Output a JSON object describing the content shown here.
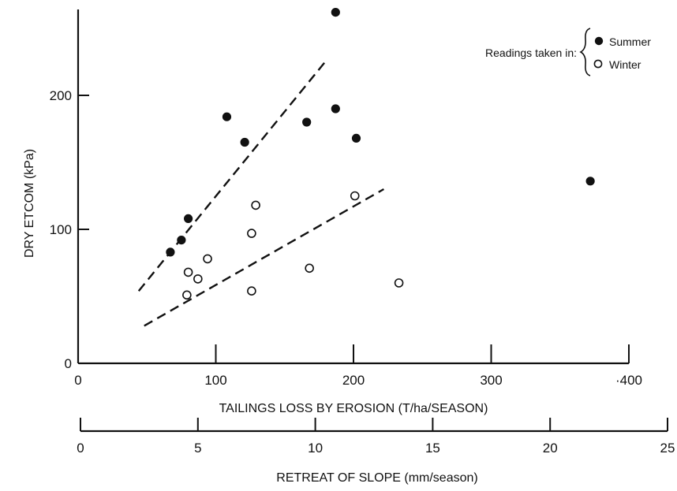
{
  "chart_data": {
    "type": "scatter",
    "title": "",
    "xlabel": "TAILINGS LOSS BY EROSION (T/ha/SEASON)",
    "ylabel": "DRY ETCOM (kPa)",
    "x2label": "RETREAT OF SLOPE (mm/season)",
    "xlim": [
      0,
      400
    ],
    "ylim": [
      0,
      260
    ],
    "x2lim": [
      0,
      25
    ],
    "xticks": [
      0,
      100,
      200,
      300,
      400
    ],
    "xtick_labels": [
      "0",
      "100",
      "200",
      "300",
      "·400"
    ],
    "yticks": [
      0,
      100,
      200
    ],
    "ytick_labels": [
      "0",
      "100",
      "200"
    ],
    "x2ticks": [
      0,
      5,
      10,
      15,
      20,
      25
    ],
    "x2tick_labels": [
      "0",
      "5",
      "10",
      "15",
      "20",
      "25"
    ],
    "grid": false,
    "legend": {
      "title": "Readings taken in:",
      "placement": "top-right",
      "entries": [
        "Summer",
        "Winter"
      ]
    },
    "series": [
      {
        "name": "Summer",
        "marker": "filled-circle",
        "points": [
          {
            "x": 67,
            "y": 83
          },
          {
            "x": 75,
            "y": 92
          },
          {
            "x": 80,
            "y": 108
          },
          {
            "x": 108,
            "y": 184
          },
          {
            "x": 121,
            "y": 165
          },
          {
            "x": 166,
            "y": 180
          },
          {
            "x": 187,
            "y": 262
          },
          {
            "x": 187,
            "y": 190
          },
          {
            "x": 202,
            "y": 168
          },
          {
            "x": 372,
            "y": 136
          }
        ]
      },
      {
        "name": "Winter",
        "marker": "open-circle",
        "points": [
          {
            "x": 79,
            "y": 51
          },
          {
            "x": 80,
            "y": 68
          },
          {
            "x": 87,
            "y": 63
          },
          {
            "x": 94,
            "y": 78
          },
          {
            "x": 126,
            "y": 54
          },
          {
            "x": 126,
            "y": 97
          },
          {
            "x": 129,
            "y": 118
          },
          {
            "x": 168,
            "y": 71
          },
          {
            "x": 201,
            "y": 125
          },
          {
            "x": 233,
            "y": 60
          }
        ]
      }
    ],
    "trend_lines": [
      {
        "series": "Summer",
        "style": "dashed",
        "from": [
          44,
          54
        ],
        "to": [
          181,
          227
        ]
      },
      {
        "series": "Winter",
        "style": "dashed",
        "from": [
          48,
          28
        ],
        "to": [
          222,
          130
        ]
      }
    ]
  }
}
